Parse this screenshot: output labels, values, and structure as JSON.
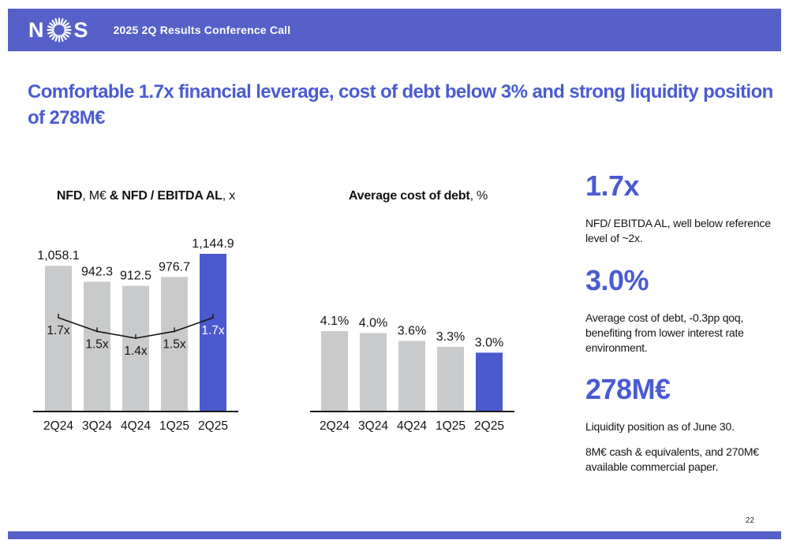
{
  "header": {
    "logo_n": "N",
    "logo_s": "S",
    "title": "2025 2Q Results Conference Call"
  },
  "slide_title": "Comfortable 1.7x financial leverage, cost of debt below 3% and strong liquidity position of 278M€",
  "colors": {
    "brand_blue": "#5560C8",
    "accent_text_blue": "#4A5BD1",
    "bar_gray": "#C9CACB",
    "bar_highlight_blue": "#4A59CE",
    "line_black": "#141414",
    "axis_black": "#1a1a1a"
  },
  "chart_data": [
    {
      "type": "bar",
      "title": "NFD, M€ & NFD / EBITDA AL, x",
      "title_parts": [
        {
          "t": "NFD",
          "bold": true
        },
        {
          "t": ", M€ ",
          "bold": false
        },
        {
          "t": "& NFD / EBITDA AL",
          "bold": true
        },
        {
          "t": ", x",
          "bold": false
        }
      ],
      "categories": [
        "2Q24",
        "3Q24",
        "4Q24",
        "1Q25",
        "2Q25"
      ],
      "series": [
        {
          "name": "NFD (M€)",
          "type": "bar",
          "values": [
            1058.1,
            942.3,
            912.5,
            976.7,
            1144.9
          ],
          "labels": [
            "1,058.1",
            "942.3",
            "912.5",
            "976.7",
            "1,144.9"
          ]
        },
        {
          "name": "NFD / EBITDA AL (x)",
          "type": "line",
          "values": [
            1.7,
            1.5,
            1.4,
            1.5,
            1.7
          ],
          "labels": [
            "1.7x",
            "1.5x",
            "1.4x",
            "1.5x",
            "1.7x"
          ]
        }
      ],
      "highlight_index": 4,
      "ylim": [
        0,
        1144.9
      ],
      "grid": false,
      "legend": "none"
    },
    {
      "type": "bar",
      "title": "Average cost of debt, %",
      "title_parts": [
        {
          "t": "Average cost of debt",
          "bold": true
        },
        {
          "t": ", %",
          "bold": false
        }
      ],
      "categories": [
        "2Q24",
        "3Q24",
        "4Q24",
        "1Q25",
        "2Q25"
      ],
      "values": [
        4.1,
        4.0,
        3.6,
        3.3,
        3.0
      ],
      "labels": [
        "4.1%",
        "4.0%",
        "3.6%",
        "3.3%",
        "3.0%"
      ],
      "highlight_index": 4,
      "ylim": [
        0,
        4.1
      ],
      "grid": false,
      "legend": "none"
    }
  ],
  "highlights": [
    {
      "value": "1.7x",
      "desc": "NFD/ EBITDA AL, well below reference level of ~2x."
    },
    {
      "value": "3.0%",
      "desc": "Average cost of debt, -0.3pp qoq, benefiting from lower interest rate environment."
    },
    {
      "value": "278M€",
      "desc": "Liquidity position as of June 30.",
      "desc2": "8M€ cash & equivalents, and 270M€ available commercial paper."
    }
  ],
  "footer": {
    "page_number": "22"
  }
}
